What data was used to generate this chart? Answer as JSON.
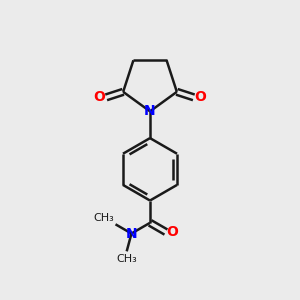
{
  "background_color": "#ebebeb",
  "bond_color": "#1a1a1a",
  "N_color": "#0000ff",
  "O_color": "#ff0000",
  "line_width": 1.8,
  "figsize": [
    3.0,
    3.0
  ],
  "dpi": 100,
  "xlim": [
    0,
    10
  ],
  "ylim": [
    0,
    10
  ]
}
